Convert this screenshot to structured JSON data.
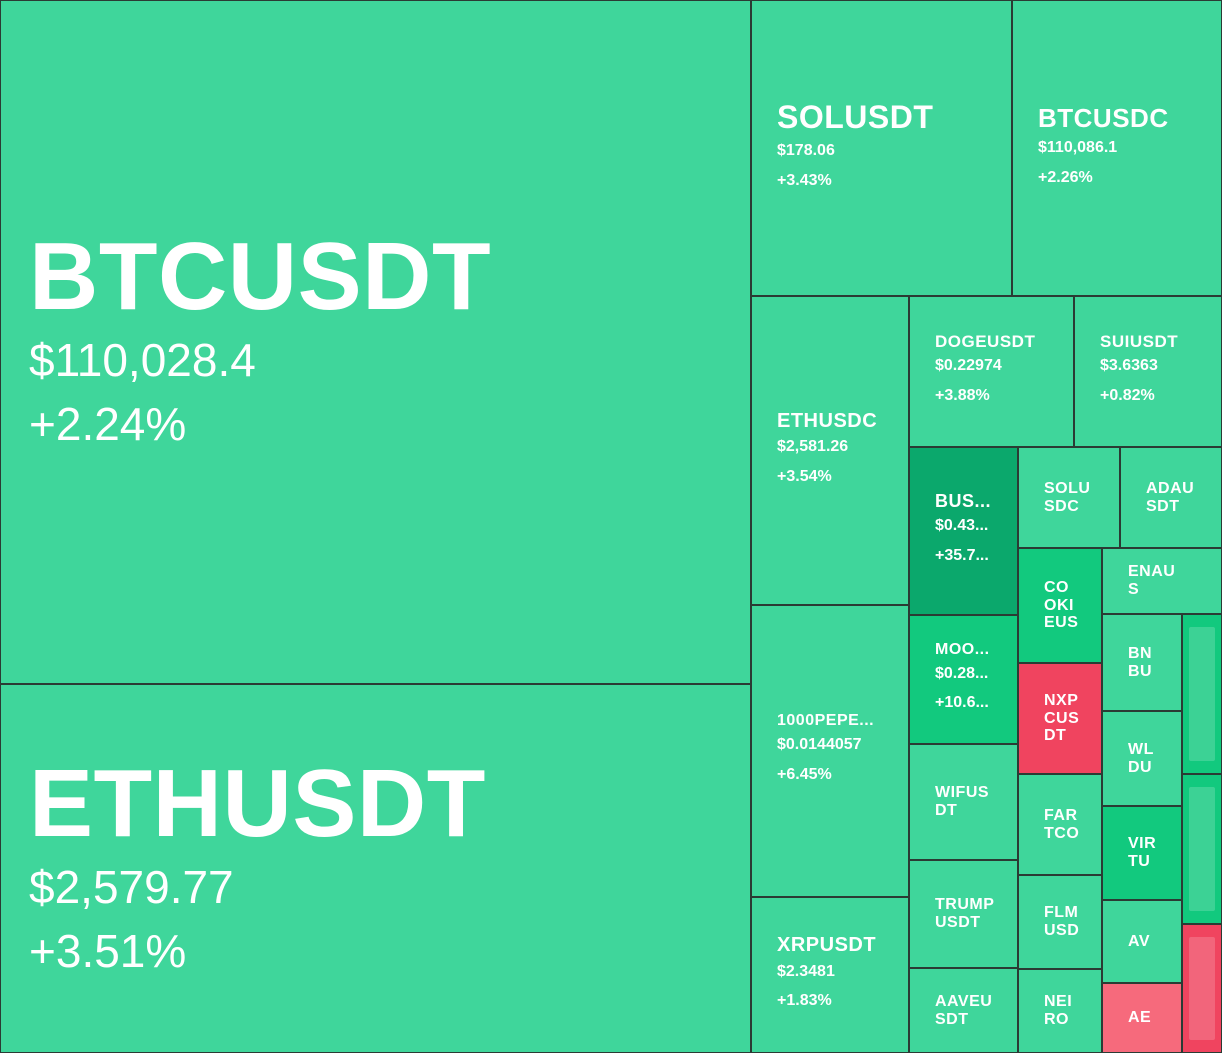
{
  "tiles": [
    {
      "symbol": "BTCUSDT",
      "price": "$110,028.4",
      "change": "+2.24%",
      "color": "#3fd69b"
    },
    {
      "symbol": "ETHUSDT",
      "price": "$2,579.77",
      "change": "+3.51%",
      "color": "#3fd69b"
    },
    {
      "symbol": "SOLUSDT",
      "price": "$178.06",
      "change": "+3.43%",
      "color": "#3fd69b"
    },
    {
      "symbol": "BTCUSDC",
      "price": "$110,086.1",
      "change": "+2.26%",
      "color": "#3fd69b"
    },
    {
      "symbol": "ETHUSDC",
      "price": "$2,581.26",
      "change": "+3.54%",
      "color": "#3fd69b"
    },
    {
      "symbol": "1000PEPE...",
      "price": "$0.0144057",
      "change": "+6.45%",
      "color": "#3fd69b"
    },
    {
      "symbol": "XRPUSDT",
      "price": "$2.3481",
      "change": "+1.83%",
      "color": "#3fd69b"
    },
    {
      "symbol": "DOGEUSDT",
      "price": "$0.22974",
      "change": "+3.88%",
      "color": "#3fd69b"
    },
    {
      "symbol": "SUIUSDT",
      "price": "$3.6363",
      "change": "+0.82%",
      "color": "#3fd69b"
    },
    {
      "symbol": "BUS...",
      "price": "$0.43...",
      "change": "+35.7...",
      "color": "#0ba86c"
    },
    {
      "symbol": "SOLUSDC",
      "color": "#3fd69b"
    },
    {
      "symbol": "ADAUSDT",
      "color": "#3fd69b"
    },
    {
      "symbol": "COOKIEUS",
      "color": "#12c97e"
    },
    {
      "symbol": "ENAUS",
      "color": "#3fd69b"
    },
    {
      "symbol": "MOO...",
      "price": "$0.28...",
      "change": "+10.6...",
      "color": "#12c97e"
    },
    {
      "symbol": "NXPCUSDT",
      "color": "#f0445f"
    },
    {
      "symbol": "BNBU",
      "color": "#3fd69b"
    },
    {
      "symbol": "WLDU",
      "color": "#3fd69b"
    },
    {
      "symbol": "WIFUSDT",
      "color": "#3fd69b"
    },
    {
      "symbol": "FARTCO",
      "color": "#3fd69b"
    },
    {
      "symbol": "VIRTU",
      "color": "#12c97e"
    },
    {
      "symbol": "TRUMPUSDT",
      "color": "#3fd69b"
    },
    {
      "symbol": "FLMUSD",
      "color": "#3fd69b"
    },
    {
      "symbol": "AV",
      "color": "#3fd69b"
    },
    {
      "symbol": "AAVEUSDT",
      "color": "#3fd69b"
    },
    {
      "symbol": "NEIRO",
      "color": "#3fd69b"
    },
    {
      "symbol": "AE",
      "color": "#f66a7c"
    },
    {
      "symbol": null,
      "color": "#12c97e"
    },
    {
      "symbol": null,
      "color": "#12c97e"
    },
    {
      "symbol": null,
      "color": "#f0445f"
    }
  ]
}
